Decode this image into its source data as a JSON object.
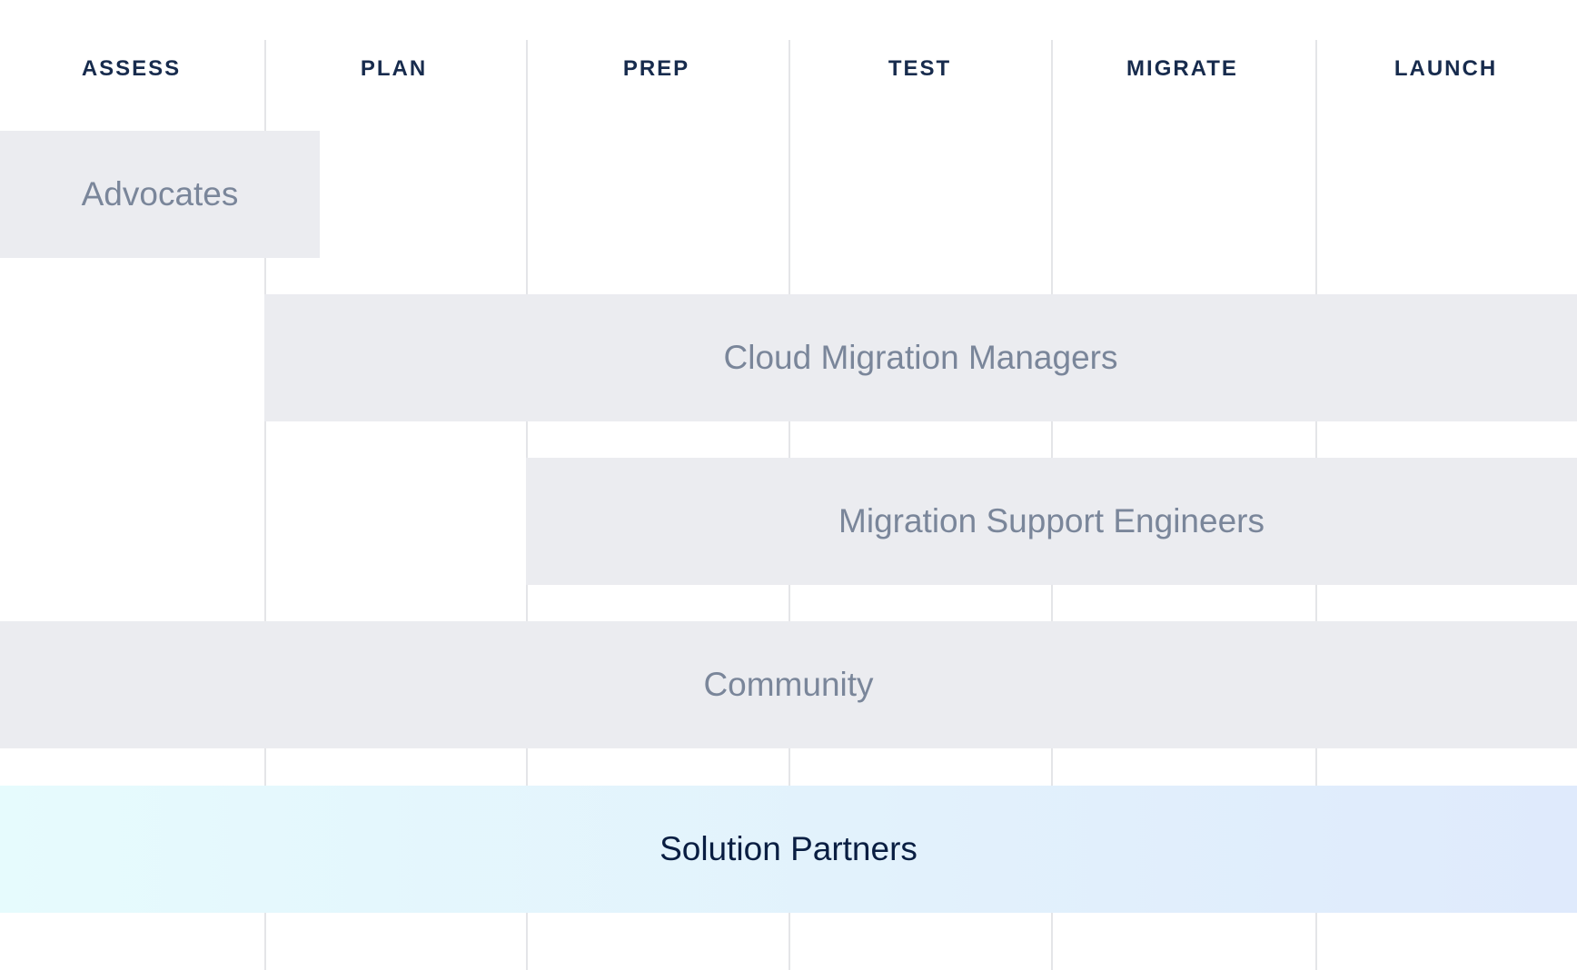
{
  "phases": [
    "ASSESS",
    "PLAN",
    "PREP",
    "TEST",
    "MIGRATE",
    "LAUNCH"
  ],
  "rows": [
    {
      "label": "Advocates",
      "start_phase": "ASSESS",
      "end_phase": "PLAN (partial)"
    },
    {
      "label": "Cloud Migration Managers",
      "start_phase": "PLAN",
      "end_phase": "LAUNCH"
    },
    {
      "label": "Migration Support Engineers",
      "start_phase": "PREP",
      "end_phase": "LAUNCH"
    },
    {
      "label": "Community",
      "start_phase": "ASSESS",
      "end_phase": "LAUNCH"
    },
    {
      "label": "Solution Partners",
      "start_phase": "ASSESS",
      "end_phase": "LAUNCH"
    }
  ],
  "colors": {
    "header_text": "#172b4d",
    "bar_bg": "#ebecf0",
    "bar_text": "#7a869a",
    "partner_gradient": [
      "#e6fbfd",
      "#dfeafc"
    ],
    "partner_text": "#091e42"
  }
}
